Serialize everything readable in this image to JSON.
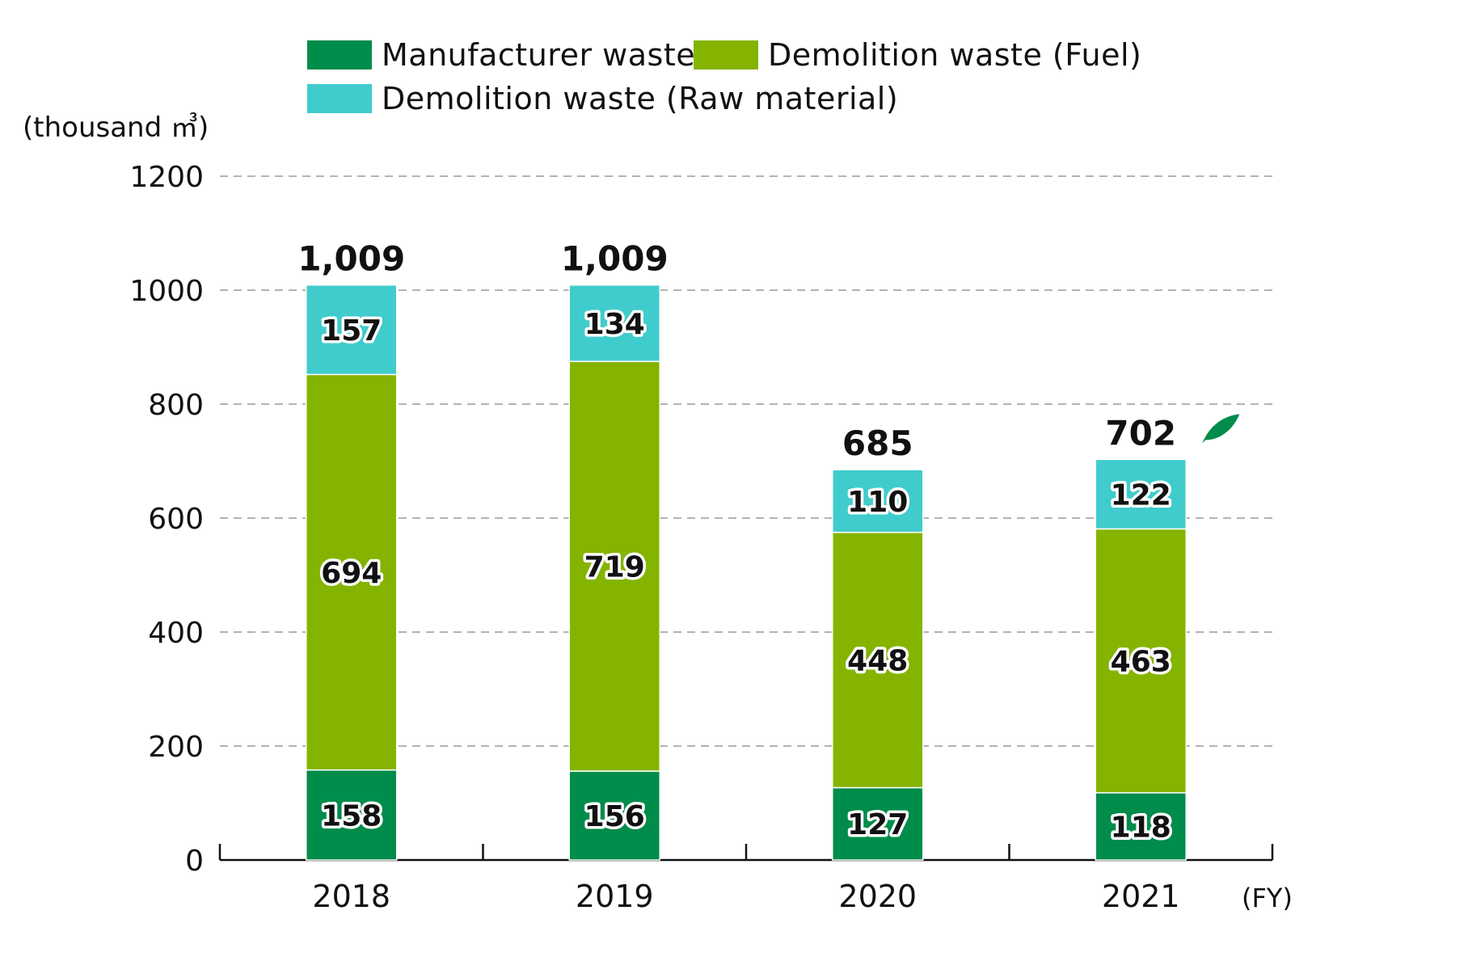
{
  "chart_data": {
    "type": "bar",
    "stacked": true,
    "unit_label": "(thousand ㎥)",
    "x_unit_label": "(FY)",
    "categories": [
      "2018",
      "2019",
      "2020",
      "2021"
    ],
    "series": [
      {
        "name": "Manufacturer waste",
        "color": "#008c4a",
        "values": [
          158,
          156,
          127,
          118
        ]
      },
      {
        "name": "Demolition waste (Fuel)",
        "color": "#84b400",
        "values": [
          694,
          719,
          448,
          463
        ]
      },
      {
        "name": "Demolition waste (Raw material)",
        "color": "#40cccc",
        "values": [
          157,
          134,
          110,
          122
        ]
      }
    ],
    "totals": [
      "1,009",
      "1,009",
      "685",
      "702"
    ],
    "ylim": [
      0,
      1200
    ],
    "yticks": [
      0,
      200,
      400,
      600,
      800,
      1000,
      1200
    ],
    "grid": "dashed horizontal",
    "legend_position": "top",
    "highlight_icon": "leaf-icon"
  }
}
